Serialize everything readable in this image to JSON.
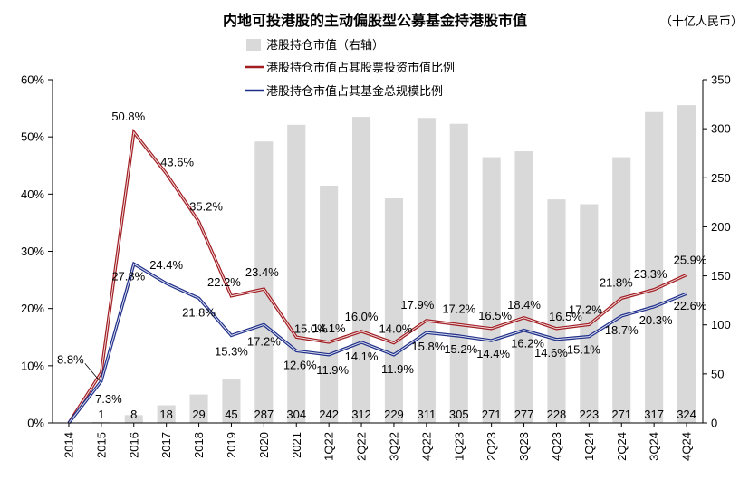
{
  "chart_data": {
    "type": "bar+line",
    "title": "内地可投港股的主动偏股型公募基金持港股市值",
    "unit_note": "（十亿人民币）",
    "categories": [
      "2014",
      "2015",
      "2016",
      "2017",
      "2018",
      "2019",
      "2020",
      "2021",
      "1Q22",
      "2Q22",
      "3Q22",
      "4Q22",
      "1Q23",
      "2Q23",
      "3Q23",
      "4Q23",
      "1Q24",
      "2Q24",
      "3Q24",
      "4Q24"
    ],
    "left_axis": {
      "min": 0,
      "max": 60,
      "step": 10,
      "tick_labels": [
        "0%",
        "10%",
        "20%",
        "30%",
        "40%",
        "50%",
        "60%"
      ]
    },
    "right_axis": {
      "min": 0,
      "max": 350,
      "step": 50,
      "tick_labels": [
        "0",
        "50",
        "100",
        "150",
        "200",
        "250",
        "300",
        "350"
      ]
    },
    "bars": {
      "name": "港股持仓市值（右轴）",
      "axis": "right",
      "color": "#d9d9d9",
      "values": [
        0,
        1,
        8,
        18,
        29,
        45,
        287,
        304,
        242,
        312,
        229,
        311,
        305,
        271,
        277,
        228,
        223,
        271,
        317,
        324
      ],
      "labels": [
        "",
        "1",
        "8",
        "18",
        "29",
        "45",
        "287",
        "304",
        "242",
        "312",
        "229",
        "311",
        "305",
        "271",
        "277",
        "228",
        "223",
        "271",
        "317",
        "324"
      ]
    },
    "series": [
      {
        "name": "港股持仓市值占其股票投资市值比例",
        "axis": "left",
        "color": "#a11d22",
        "values": [
          0,
          8.8,
          50.8,
          43.6,
          35.2,
          22.2,
          23.4,
          15.0,
          14.1,
          16.0,
          14.0,
          17.9,
          17.2,
          16.5,
          18.4,
          16.5,
          17.2,
          21.8,
          23.3,
          25.9
        ],
        "labels": [
          "",
          "8.8%",
          "50.8%",
          "43.6%",
          "35.2%",
          "22.2%",
          "23.4%",
          "15.0%",
          "14.1%",
          "16.0%",
          "14.0%",
          "17.9%",
          "17.2%",
          "16.5%",
          "18.4%",
          "16.5%",
          "17.2%",
          "21.8%",
          "23.3%",
          "25.9%"
        ]
      },
      {
        "name": "港股持仓市值占其基金总规模比例",
        "axis": "left",
        "color": "#1f2f8a",
        "values": [
          0,
          7.3,
          27.8,
          24.4,
          21.8,
          15.3,
          17.2,
          12.6,
          11.9,
          14.1,
          11.9,
          15.8,
          15.2,
          14.4,
          16.2,
          14.6,
          15.1,
          18.7,
          20.3,
          22.6
        ],
        "labels": [
          "",
          "7.3%",
          "27.8%",
          "24.4%",
          "21.8%",
          "15.3%",
          "17.2%",
          "12.6%",
          "11.9%",
          "14.1%",
          "11.9%",
          "15.8%",
          "15.2%",
          "14.4%",
          "16.2%",
          "14.6%",
          "15.1%",
          "18.7%",
          "20.3%",
          "22.6%"
        ]
      }
    ],
    "legend_position": "top-center",
    "grid": false
  }
}
